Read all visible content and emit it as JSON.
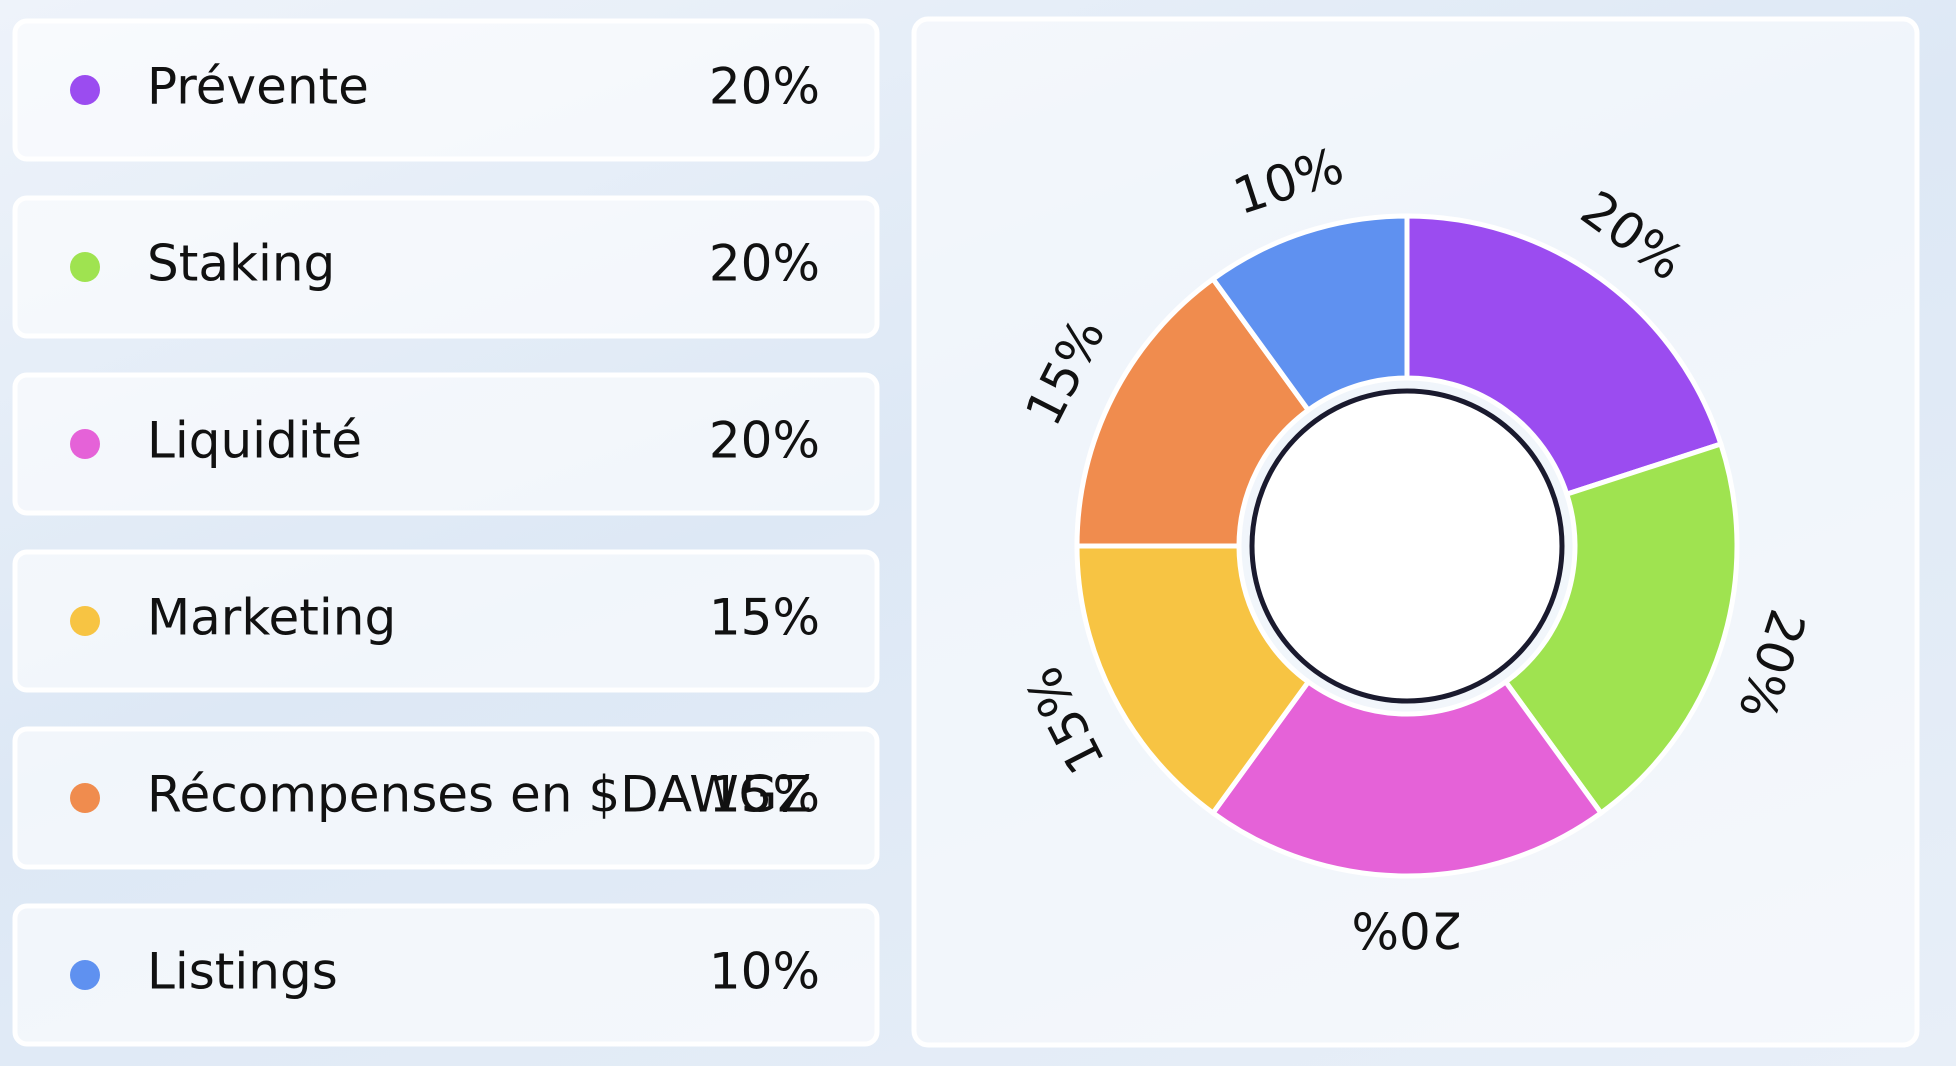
{
  "chart_data": {
    "type": "pie",
    "categories": [
      "Prévente",
      "Staking",
      "Liquidité",
      "Marketing",
      "Récompenses en $DAWGZ",
      "Listings"
    ],
    "values": [
      20,
      20,
      20,
      15,
      15,
      10
    ],
    "value_labels": [
      "20%",
      "20%",
      "20%",
      "15%",
      "15%",
      "10%"
    ],
    "colors": [
      "#9b4cf0",
      "#9fe350",
      "#e562d8",
      "#f7c443",
      "#f08c4e",
      "#5f91f0"
    ]
  }
}
